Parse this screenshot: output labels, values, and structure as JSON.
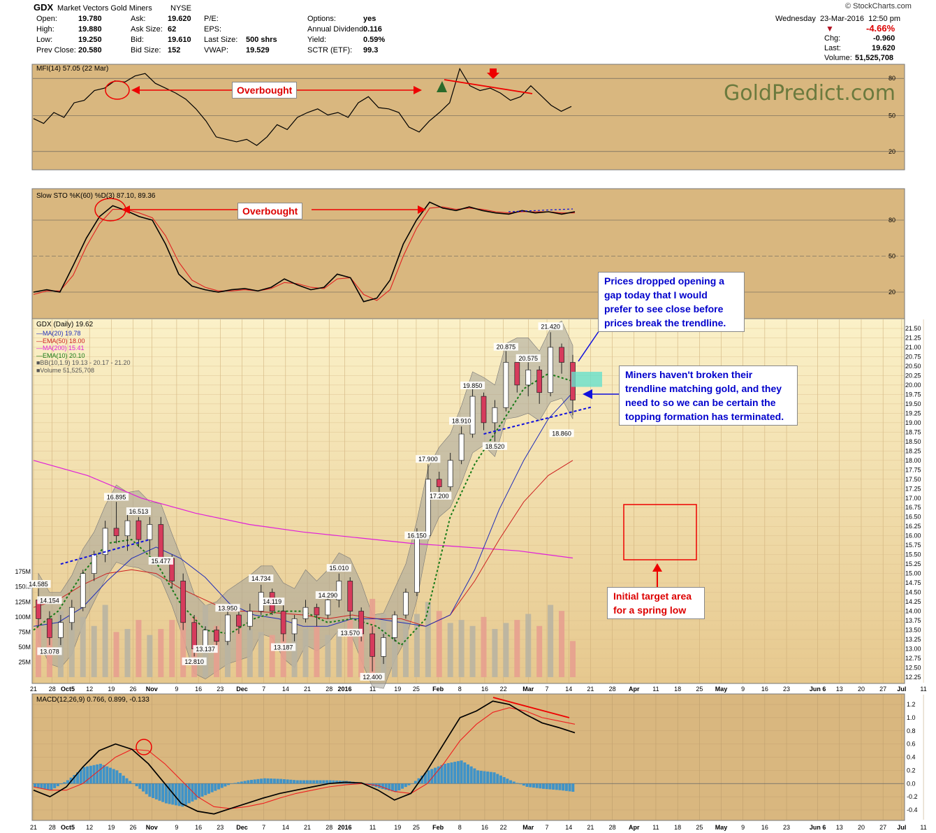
{
  "header": {
    "symbol": "GDX",
    "name": "Market Vectors Gold Miners",
    "exchange": "NYSE",
    "source": "© StockCharts.com",
    "date": "Wednesday",
    "date2": "23-Mar-2016",
    "time": "12:50 pm",
    "pct_change": "-4.66%",
    "chg_label": "Chg:",
    "chg": "-0.960",
    "last_label": "Last:",
    "last": "19.620",
    "volume_label": "Volume:",
    "volume": "51,525,708",
    "col1": [
      [
        "Open:",
        "19.780"
      ],
      [
        "High:",
        "19.880"
      ],
      [
        "Low:",
        "19.250"
      ],
      [
        "Prev Close:",
        "20.580"
      ]
    ],
    "col2": [
      [
        "Ask:",
        "19.620"
      ],
      [
        "Ask Size:",
        "62"
      ],
      [
        "Bid:",
        "19.610"
      ],
      [
        "Bid Size:",
        "152"
      ]
    ],
    "col3": [
      [
        "P/E:",
        ""
      ],
      [
        "EPS:",
        ""
      ],
      [
        "Last Size:",
        "500 shrs"
      ],
      [
        "VWAP:",
        "19.529"
      ]
    ],
    "col4": [
      [
        "Options:",
        "yes"
      ],
      [
        "Annual Dividend:",
        "0.116"
      ],
      [
        "Yield:",
        "0.59%"
      ],
      [
        "SCTR (ETF):",
        "99.3"
      ]
    ]
  },
  "watermark": "GoldPredict.com",
  "annotations": {
    "overbought_mfi": "Overbought",
    "overbought_sto": "Overbought",
    "gap_note": [
      "Prices dropped opening a",
      "gap today that I would",
      "prefer to see close before",
      "prices break the trendline."
    ],
    "miners_note": [
      "Miners haven't broken their",
      "trendline matching gold, and they",
      "need to so we can be certain the",
      "topping formation has terminated."
    ],
    "target_note": [
      "Initial target area",
      "for a spring low"
    ]
  },
  "colors": {
    "panel_bg": "#d9b77f",
    "main_bg_top": "#fbf0c6",
    "main_bg_bottom": "#e3c48a",
    "candle_up": "#d63b5c",
    "candle_down": "#1c1c1c",
    "volume_up": "#e7a08f",
    "volume_down": "#b9b4a2",
    "ma20": "#1f2db8",
    "ema50": "#cc2020",
    "ma200": "#e020d8",
    "ema10": "#177a17",
    "bb_fill": "#a6a49a",
    "macd_hist": "#3f93c8",
    "cyan_box": "#66e0cc"
  },
  "chart_data": [
    {
      "type": "line",
      "title": "MFI(14) 57.05 (22 Mar)",
      "ylim": [
        0,
        100
      ],
      "y_ticks": [
        80,
        50,
        20
      ],
      "x_ticks": [
        "Oct5",
        "Nov",
        "Dec",
        "2016",
        "Feb",
        "Mar",
        "Apr",
        "May",
        "Jun"
      ],
      "series": [
        {
          "name": "MFI(14)",
          "values": [
            47,
            43,
            52,
            48,
            60,
            62,
            70,
            72,
            78,
            77,
            82,
            84,
            76,
            72,
            68,
            63,
            55,
            45,
            32,
            30,
            28,
            30,
            25,
            32,
            42,
            38,
            48,
            52,
            55,
            50,
            52,
            48,
            60,
            65,
            56,
            55,
            52,
            40,
            36,
            45,
            52,
            60,
            88,
            74,
            70,
            72,
            68,
            62,
            65,
            74,
            66,
            58,
            53,
            57
          ]
        }
      ]
    },
    {
      "type": "line",
      "title": "Slow STO %K(60) %D(3) 87.10, 89.36",
      "ylim": [
        0,
        100
      ],
      "y_ticks": [
        80,
        50,
        20
      ],
      "series": [
        {
          "name": "%K(60)",
          "values": [
            20,
            22,
            20,
            42,
            65,
            83,
            92,
            88,
            83,
            80,
            60,
            35,
            25,
            22,
            20,
            22,
            23,
            21,
            24,
            31,
            26,
            22,
            24,
            35,
            32,
            12,
            15,
            30,
            60,
            80,
            95,
            90,
            88,
            91,
            88,
            86,
            85,
            88,
            86,
            87,
            85,
            87
          ]
        },
        {
          "name": "%D(3)",
          "values": [
            18,
            21,
            21,
            34,
            58,
            77,
            89,
            89,
            86,
            82,
            67,
            45,
            30,
            24,
            21,
            21,
            22,
            21,
            23,
            28,
            27,
            24,
            23,
            31,
            32,
            18,
            13,
            22,
            50,
            73,
            90,
            91,
            89,
            90,
            89,
            87,
            86,
            87,
            87,
            87,
            86,
            86
          ]
        }
      ]
    },
    {
      "type": "candlestick",
      "title": "GDX (Daily) 19.62",
      "ylim": [
        12.25,
        21.5
      ],
      "legend": [
        "MA(20) 19.78",
        "EMA(50) 18.00",
        "MA(200) 15.41",
        "EMA(10) 20.10",
        "BB(10,1.9) 19.13 - 20.17 - 21.20",
        "Volume 51,525,708"
      ],
      "volume_ticks": [
        "175M",
        "150M",
        "125M",
        "100M",
        "75M",
        "50M",
        "25M"
      ],
      "volume_ylim": [
        0,
        200
      ],
      "price_labels": [
        "14.585",
        "14.154",
        "13.078",
        "16.895",
        "16.513",
        "15.477",
        "12.810",
        "13.137",
        "13.950",
        "14.734",
        "14.119",
        "13.187",
        "14.290",
        "13.570",
        "15.010",
        "12.400",
        "16.150",
        "17.200",
        "17.900",
        "18.910",
        "19.850",
        "18.520",
        "20.875",
        "20.575",
        "21.420",
        "18.860"
      ],
      "ohlc": [
        [
          14.3,
          14.6,
          13.6,
          13.8
        ],
        [
          13.8,
          14.0,
          13.1,
          13.3
        ],
        [
          13.3,
          13.9,
          13.1,
          13.7
        ],
        [
          13.7,
          14.3,
          13.5,
          14.1
        ],
        [
          14.1,
          15.1,
          14.0,
          15.0
        ],
        [
          15.0,
          15.6,
          14.8,
          15.5
        ],
        [
          15.5,
          16.4,
          15.3,
          16.2
        ],
        [
          16.2,
          16.9,
          15.8,
          16.0
        ],
        [
          16.0,
          16.6,
          15.6,
          16.4
        ],
        [
          16.4,
          16.5,
          15.7,
          15.9
        ],
        [
          15.9,
          16.5,
          15.5,
          16.3
        ],
        [
          16.3,
          16.5,
          15.3,
          15.4
        ],
        [
          15.4,
          15.5,
          14.6,
          14.8
        ],
        [
          14.8,
          15.0,
          13.5,
          13.7
        ],
        [
          13.7,
          13.9,
          12.8,
          13.0
        ],
        [
          13.0,
          13.6,
          12.9,
          13.5
        ],
        [
          13.5,
          13.6,
          13.0,
          13.2
        ],
        [
          13.2,
          14.0,
          13.1,
          13.9
        ],
        [
          13.9,
          14.0,
          13.4,
          13.6
        ],
        [
          13.6,
          14.2,
          13.5,
          14.0
        ],
        [
          14.0,
          14.7,
          13.9,
          14.5
        ],
        [
          14.5,
          14.6,
          13.9,
          14.0
        ],
        [
          14.0,
          14.3,
          13.2,
          13.4
        ],
        [
          13.4,
          13.9,
          13.2,
          13.8
        ],
        [
          13.8,
          14.3,
          13.7,
          14.1
        ],
        [
          14.1,
          14.2,
          13.6,
          13.9
        ],
        [
          13.9,
          14.5,
          13.8,
          14.3
        ],
        [
          14.3,
          15.0,
          14.1,
          14.8
        ],
        [
          14.8,
          14.9,
          13.8,
          14.0
        ],
        [
          14.0,
          14.1,
          13.2,
          13.4
        ],
        [
          13.4,
          13.6,
          12.4,
          12.8
        ],
        [
          12.8,
          13.4,
          12.6,
          13.3
        ],
        [
          13.3,
          14.0,
          13.2,
          13.9
        ],
        [
          13.9,
          14.6,
          13.8,
          14.5
        ],
        [
          14.5,
          16.2,
          14.4,
          16.0
        ],
        [
          16.0,
          17.9,
          15.9,
          17.5
        ],
        [
          17.5,
          17.7,
          17.1,
          17.3
        ],
        [
          17.3,
          18.2,
          17.2,
          18.0
        ],
        [
          18.0,
          18.9,
          17.9,
          18.7
        ],
        [
          18.7,
          19.9,
          18.6,
          19.7
        ],
        [
          19.7,
          19.8,
          18.8,
          19.0
        ],
        [
          19.0,
          19.6,
          18.5,
          19.4
        ],
        [
          19.4,
          20.9,
          19.3,
          20.6
        ],
        [
          20.6,
          20.6,
          19.8,
          20.0
        ],
        [
          20.0,
          20.6,
          19.7,
          20.4
        ],
        [
          20.4,
          20.5,
          19.5,
          19.8
        ],
        [
          19.8,
          21.4,
          19.7,
          21.0
        ],
        [
          21.0,
          21.1,
          20.3,
          20.6
        ],
        [
          20.6,
          20.8,
          19.2,
          19.6
        ]
      ],
      "series": [
        {
          "name": "MA(20)",
          "values": [
            13.6,
            13.7,
            14.1,
            14.8,
            15.4,
            15.7,
            15.4,
            14.9,
            14.2,
            13.9,
            13.8,
            13.6,
            13.6,
            13.8,
            13.8,
            13.7,
            13.6,
            13.9,
            15.1,
            16.7,
            18.0,
            19.1,
            19.8
          ]
        },
        {
          "name": "EMA(50)",
          "values": [
            14.1,
            14.3,
            14.7,
            15.0,
            15.1,
            15.0,
            14.6,
            14.3,
            14.0,
            14.0,
            13.95,
            13.9,
            13.8,
            13.9,
            13.8,
            13.8,
            13.6,
            13.9,
            14.8,
            15.9,
            16.9,
            17.6,
            18.0
          ]
        },
        {
          "name": "MA(200)",
          "values": [
            18.0,
            17.6,
            17.0,
            16.6,
            16.3,
            16.1,
            15.95,
            15.8,
            15.7,
            15.6,
            15.41
          ]
        },
        {
          "name": "EMA(10)",
          "values": [
            13.5,
            14.0,
            15.0,
            15.8,
            15.9,
            15.3,
            14.2,
            13.5,
            13.4,
            13.8,
            14.0,
            14.0,
            13.7,
            13.8,
            13.6,
            13.1,
            13.8,
            16.5,
            17.9,
            18.9,
            19.9,
            20.3,
            20.1
          ]
        }
      ]
    },
    {
      "type": "line",
      "title": "MACD(12,26,9) 0.766, 0.899, -0.133",
      "ylim": [
        -0.5,
        1.3
      ],
      "y_ticks": [
        1.2,
        1.0,
        0.8,
        0.6,
        0.4,
        0.2,
        0.0,
        -0.2,
        -0.4
      ],
      "x_ticks": [
        "21",
        "28",
        "Oct5",
        "12",
        "19",
        "26",
        "Nov",
        "9",
        "16",
        "23",
        "Dec",
        "7",
        "14",
        "21",
        "28",
        "2016",
        "11",
        "19",
        "25",
        "Feb",
        "8",
        "16",
        "22",
        "Mar",
        "7",
        "14",
        "21",
        "28",
        "Apr",
        "11",
        "18",
        "25",
        "May",
        "9",
        "16",
        "23",
        "Jun 6",
        "13",
        "20",
        "27",
        "Jul",
        "11"
      ],
      "series": [
        {
          "name": "MACD(12,26,9)",
          "values": [
            -0.1,
            -0.2,
            -0.05,
            0.25,
            0.5,
            0.6,
            0.52,
            0.3,
            0.0,
            -0.3,
            -0.42,
            -0.46,
            -0.38,
            -0.3,
            -0.22,
            -0.15,
            -0.1,
            -0.05,
            0.0,
            0.02,
            0.01,
            -0.1,
            -0.25,
            -0.15,
            0.2,
            0.6,
            1.0,
            1.1,
            1.25,
            1.2,
            1.05,
            0.92,
            0.85,
            0.77
          ]
        },
        {
          "name": "Signal",
          "values": [
            -0.05,
            -0.1,
            -0.1,
            0.0,
            0.2,
            0.4,
            0.52,
            0.5,
            0.3,
            0.05,
            -0.2,
            -0.35,
            -0.38,
            -0.35,
            -0.3,
            -0.22,
            -0.15,
            -0.1,
            -0.05,
            -0.02,
            0.0,
            -0.03,
            -0.12,
            -0.15,
            0.0,
            0.3,
            0.65,
            0.9,
            1.08,
            1.15,
            1.1,
            1.0,
            0.95,
            0.9
          ]
        },
        {
          "name": "Histogram",
          "values": [
            -0.05,
            -0.1,
            0.05,
            0.25,
            0.3,
            0.2,
            0.0,
            -0.2,
            -0.3,
            -0.35,
            -0.22,
            -0.11,
            0.0,
            0.05,
            0.08,
            0.07,
            0.05,
            0.05,
            0.05,
            0.04,
            0.01,
            -0.07,
            -0.13,
            0.0,
            0.2,
            0.3,
            0.35,
            0.2,
            0.17,
            0.05,
            -0.05,
            -0.08,
            -0.1,
            -0.13
          ]
        }
      ]
    }
  ]
}
